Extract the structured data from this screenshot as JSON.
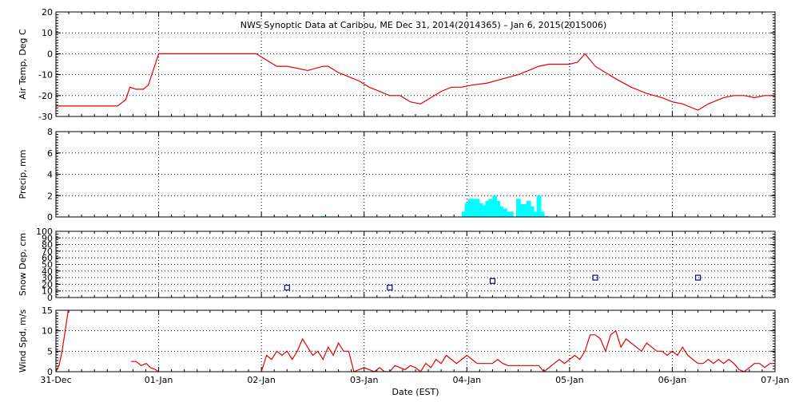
{
  "chart_data": {
    "type": "line",
    "title": "NWS Synoptic Data at Caribou, ME   Dec 31, 2014(2014365) – Jan  6, 2015(2015006)",
    "xlabel": "Date (EST)",
    "x_ticks": [
      "31-Dec",
      "01-Jan",
      "02-Jan",
      "03-Jan",
      "04-Jan",
      "05-Jan",
      "06-Jan",
      "07-Jan"
    ],
    "x_range_days": [
      0,
      7
    ],
    "grid": "dotted",
    "panels": [
      {
        "name": "air-temp",
        "type": "line",
        "ylabel": "Air Temp, Deg C",
        "ylim": [
          -30,
          20
        ],
        "yticks": [
          -30,
          -20,
          -10,
          0,
          10,
          20
        ],
        "color": "#e00000",
        "series": [
          {
            "x": [
              0,
              0.6,
              0.68,
              0.72,
              0.78,
              0.85,
              0.9,
              1.0,
              1.5,
              1.95,
              2.15,
              2.25,
              2.35,
              2.45,
              2.6,
              2.65,
              2.75,
              2.85,
              2.95,
              3.05,
              3.15,
              3.25,
              3.35,
              3.45,
              3.55,
              3.65,
              3.75,
              3.85,
              3.95,
              4.05,
              4.2,
              4.35,
              4.5,
              4.6,
              4.7,
              4.8,
              4.9,
              5.0,
              5.08,
              5.15,
              5.25,
              5.35,
              5.45,
              5.6,
              5.75,
              5.9,
              6.0,
              6.1,
              6.2,
              6.25,
              6.35,
              6.5,
              6.6,
              6.7,
              6.8,
              6.9,
              7.0
            ],
            "y": [
              -25,
              -25,
              -22,
              -16,
              -17,
              -17,
              -15,
              0,
              0,
              0,
              -6,
              -6,
              -7,
              -8,
              -6,
              -6,
              -9,
              -11,
              -13,
              -16,
              -18,
              -20,
              -20,
              -23,
              -24,
              -21,
              -18,
              -16,
              -16,
              -15,
              -14,
              -12,
              -10,
              -8,
              -6,
              -5,
              -5,
              -5,
              -4,
              0,
              -6,
              -9,
              -12,
              -16,
              -19,
              -21,
              -23,
              -24,
              -26,
              -27,
              -24,
              -21,
              -20,
              -20,
              -21,
              -20,
              -20
            ]
          }
        ]
      },
      {
        "name": "precip",
        "type": "bar",
        "ylabel": "Precip, mm",
        "ylim": [
          0,
          8
        ],
        "yticks": [
          0,
          2,
          4,
          6,
          8
        ],
        "color": "#00ffff",
        "series": [
          {
            "x": [
              2.6,
              3.97,
              4.0,
              4.03,
              4.07,
              4.1,
              4.13,
              4.17,
              4.2,
              4.23,
              4.27,
              4.3,
              4.33,
              4.37,
              4.4,
              4.43,
              4.5,
              4.53,
              4.57,
              4.6,
              4.63,
              4.67,
              4.7,
              4.73,
              4.77
            ],
            "y": [
              0.1,
              0.5,
              1.3,
              1.7,
              1.7,
              1.7,
              1.3,
              1.1,
              1.5,
              1.7,
              2.0,
              1.5,
              1.0,
              0.8,
              0.5,
              0.5,
              1.7,
              1.2,
              1.2,
              1.5,
              1.0,
              0.5,
              2.0,
              0.5,
              0.1
            ]
          }
        ]
      },
      {
        "name": "snow-depth",
        "type": "scatter",
        "ylabel": "Snow Dep, cm",
        "ylim": [
          0,
          100
        ],
        "yticks": [
          0,
          10,
          20,
          30,
          40,
          50,
          60,
          70,
          80,
          90,
          100
        ],
        "color": "#000099",
        "series": [
          {
            "x": [
              2.25,
              3.25,
              4.25,
              5.25,
              6.25
            ],
            "y": [
              15,
              15,
              25,
              30,
              30
            ]
          }
        ]
      },
      {
        "name": "wind-speed",
        "type": "line",
        "ylabel": "Wind Spd, m/s",
        "ylim": [
          0,
          15
        ],
        "yticks": [
          0,
          5,
          10,
          15
        ],
        "color": "#e00000",
        "series": [
          {
            "x": [
              0,
              0.03,
              0.06,
              0.09,
              0.12
            ],
            "y": [
              0,
              1.5,
              5,
              10,
              15
            ]
          },
          {
            "x": [
              0.73,
              0.78,
              0.83,
              0.88,
              0.92,
              0.97,
              1.0
            ],
            "y": [
              2.5,
              2.5,
              1.5,
              2,
              1,
              0.5,
              0
            ]
          },
          {
            "x": [
              2.0,
              2.05,
              2.1,
              2.15,
              2.2,
              2.25,
              2.3,
              2.35,
              2.4,
              2.45,
              2.5,
              2.55,
              2.6,
              2.65,
              2.7,
              2.75,
              2.8,
              2.85,
              2.9,
              2.95,
              3.0,
              3.05,
              3.1,
              3.15,
              3.2,
              3.25,
              3.3,
              3.35,
              3.4,
              3.45,
              3.5,
              3.55,
              3.6,
              3.65,
              3.7,
              3.75,
              3.8,
              3.85,
              3.9,
              3.95,
              4.0,
              4.05,
              4.1,
              4.15,
              4.2,
              4.25,
              4.3,
              4.35,
              4.4,
              4.5,
              4.6,
              4.7,
              4.75,
              4.8,
              4.85,
              4.9,
              4.95,
              5.0,
              5.05,
              5.1,
              5.15,
              5.2,
              5.25,
              5.3,
              5.35,
              5.4,
              5.45,
              5.5,
              5.55,
              5.6,
              5.65,
              5.7,
              5.75,
              5.8,
              5.85,
              5.9,
              5.95,
              6.0,
              6.05,
              6.1,
              6.15,
              6.2,
              6.25,
              6.3,
              6.35,
              6.4,
              6.45,
              6.5,
              6.55,
              6.6,
              6.65,
              6.7,
              6.75,
              6.8,
              6.85,
              6.9,
              6.95,
              7.0
            ],
            "y": [
              0,
              4,
              3,
              5,
              4,
              5,
              3,
              5,
              8,
              6,
              4,
              5,
              3,
              6,
              4,
              7,
              5,
              5,
              0,
              0.5,
              1,
              0.5,
              0,
              1,
              0,
              0,
              1.5,
              1,
              0.5,
              1.5,
              1,
              0,
              2,
              1,
              3,
              2,
              4,
              3,
              2,
              3,
              4,
              3,
              2,
              2,
              2,
              2,
              3,
              2,
              1.5,
              1.5,
              1.5,
              1.5,
              0,
              1,
              2,
              3,
              2,
              3,
              4,
              3,
              5,
              9,
              9,
              8,
              5,
              9,
              10,
              6,
              8,
              7,
              6,
              5,
              7,
              6,
              5,
              5,
              4,
              5,
              4,
              6,
              4,
              3,
              2,
              2,
              3,
              2,
              3,
              2,
              3,
              2,
              0.5,
              0,
              1,
              2,
              2,
              1,
              2,
              2
            ]
          }
        ]
      }
    ]
  }
}
